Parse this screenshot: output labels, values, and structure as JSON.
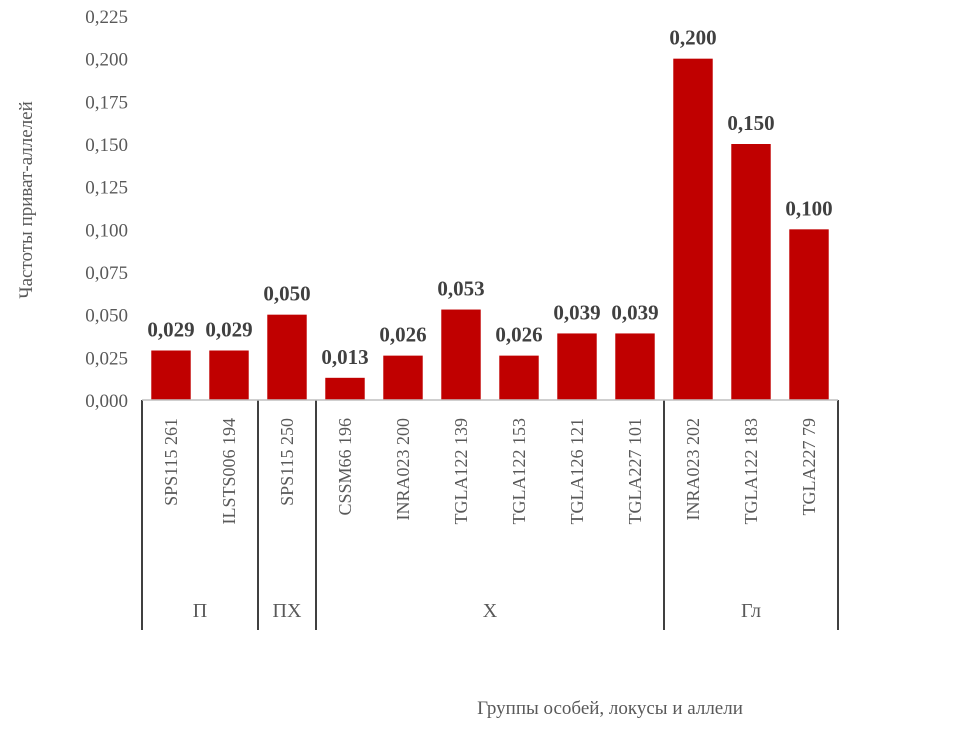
{
  "chart_data": {
    "type": "bar",
    "xlabel": "Группы особей, локусы и аллели",
    "ylabel": "Частоты приват-аллелей",
    "ylim": [
      0,
      0.225
    ],
    "ytick_step": 0.025,
    "yticks": [
      "0,000",
      "0,025",
      "0,050",
      "0,075",
      "0,100",
      "0,125",
      "0,150",
      "0,175",
      "0,200",
      "0,225"
    ],
    "grid": false,
    "legend": "none",
    "bar_color": "#C00000",
    "categories": [
      "SPS115 261",
      "ILSTS006 194",
      "SPS115 250",
      "CSSM66 196",
      "INRA023 200",
      "TGLA122 139",
      "TGLA122 153",
      "TGLA126 121",
      "TGLA227 101",
      "INRA023 202",
      "TGLA122 183",
      "TGLA227 79"
    ],
    "values": [
      0.029,
      0.029,
      0.05,
      0.013,
      0.026,
      0.053,
      0.026,
      0.039,
      0.039,
      0.2,
      0.15,
      0.1
    ],
    "value_labels": [
      "0,029",
      "0,029",
      "0,050",
      "0,013",
      "0,026",
      "0,053",
      "0,026",
      "0,039",
      "0,039",
      "0,200",
      "0,150",
      "0,100"
    ],
    "groups": [
      {
        "label": "П",
        "count": 2
      },
      {
        "label": "ПХ",
        "count": 1
      },
      {
        "label": "Х",
        "count": 6
      },
      {
        "label": "Гл",
        "count": 3
      }
    ]
  }
}
